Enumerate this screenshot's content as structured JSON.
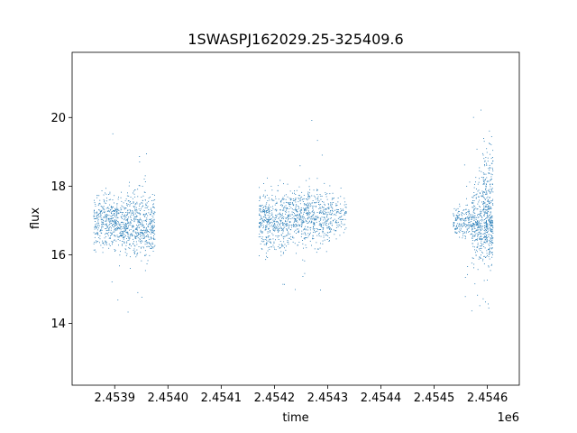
{
  "chart_data": {
    "type": "scatter",
    "title": "1SWASPJ162029.25-325409.6",
    "xlabel": "time",
    "ylabel": "flux",
    "x_offset_label": "1e6",
    "xlim": [
      2453820,
      2454660
    ],
    "ylim": [
      12.2,
      21.9
    ],
    "x_tick_values": [
      2453900,
      2454000,
      2454100,
      2454200,
      2454300,
      2454400,
      2454500,
      2454600
    ],
    "x_tick_labels": [
      "2.4539",
      "2.4540",
      "2.4541",
      "2.4542",
      "2.4543",
      "2.4544",
      "2.4545",
      "2.4546"
    ],
    "y_tick_values": [
      14,
      16,
      18,
      20
    ],
    "y_tick_labels": [
      "14",
      "16",
      "18",
      "20"
    ],
    "grid": false,
    "marker_color": "#1f77b4",
    "series": [
      {
        "segments": [
          {
            "x_range": [
              2453860,
              2453925
            ],
            "center": 16.95,
            "spread": 0.75,
            "count": 520
          },
          {
            "x_range": [
              2453925,
              2453975
            ],
            "center": 16.9,
            "spread": 0.9,
            "count": 420
          },
          {
            "x_range": [
              2453880,
              2453960
            ],
            "center": 17.0,
            "spread": 2.6,
            "count": 45
          },
          {
            "x_range": [
              2454170,
              2454225
            ],
            "center": 17.0,
            "spread": 0.85,
            "count": 430
          },
          {
            "x_range": [
              2454225,
              2454305
            ],
            "center": 17.1,
            "spread": 0.8,
            "count": 560
          },
          {
            "x_range": [
              2454305,
              2454335
            ],
            "center": 17.2,
            "spread": 0.55,
            "count": 110
          },
          {
            "x_range": [
              2454190,
              2454300
            ],
            "center": 17.0,
            "spread": 2.3,
            "count": 40
          },
          {
            "x_range": [
              2454535,
              2454570
            ],
            "center": 17.0,
            "spread": 0.45,
            "count": 170
          },
          {
            "x_range": [
              2454570,
              2454610
            ],
            "center": 16.9,
            "spread": 1.1,
            "count": 430
          },
          {
            "x_range": [
              2454590,
              2454610
            ],
            "center": 17.8,
            "spread": 1.6,
            "count": 160
          },
          {
            "x_range": [
              2454555,
              2454610
            ],
            "center": 17.0,
            "spread": 3.0,
            "count": 70
          }
        ]
      }
    ]
  }
}
